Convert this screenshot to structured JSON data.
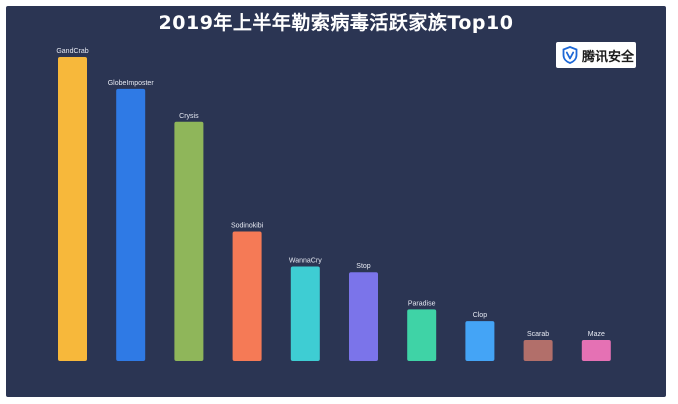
{
  "title": "2019年上半年勒索病毒活跃家族Top10",
  "brand": {
    "name": "腾讯安全",
    "icon": "shield-v-icon",
    "color": "#1d67d6"
  },
  "chart_data": {
    "type": "bar",
    "title": "2019年上半年勒索病毒活跃家族Top10",
    "xlabel": "",
    "ylabel": "",
    "categories": [
      "GandCrab",
      "GlobeImposter",
      "Crysis",
      "Sodinokibi",
      "WannaCry",
      "Stop",
      "Paradise",
      "Clop",
      "Scarab",
      "Maze"
    ],
    "values": [
      100,
      89.5,
      78.7,
      42.6,
      31.1,
      29.2,
      17.0,
      13.1,
      6.9,
      6.9
    ],
    "colors": [
      "#f7b83b",
      "#2f7ae5",
      "#8fb65a",
      "#f57a56",
      "#3ecdd3",
      "#7b74ea",
      "#3fd3a6",
      "#44a4f6",
      "#b26f6a",
      "#e571b4"
    ],
    "ylim": [
      0,
      100
    ],
    "grid": false,
    "legend": "none"
  }
}
